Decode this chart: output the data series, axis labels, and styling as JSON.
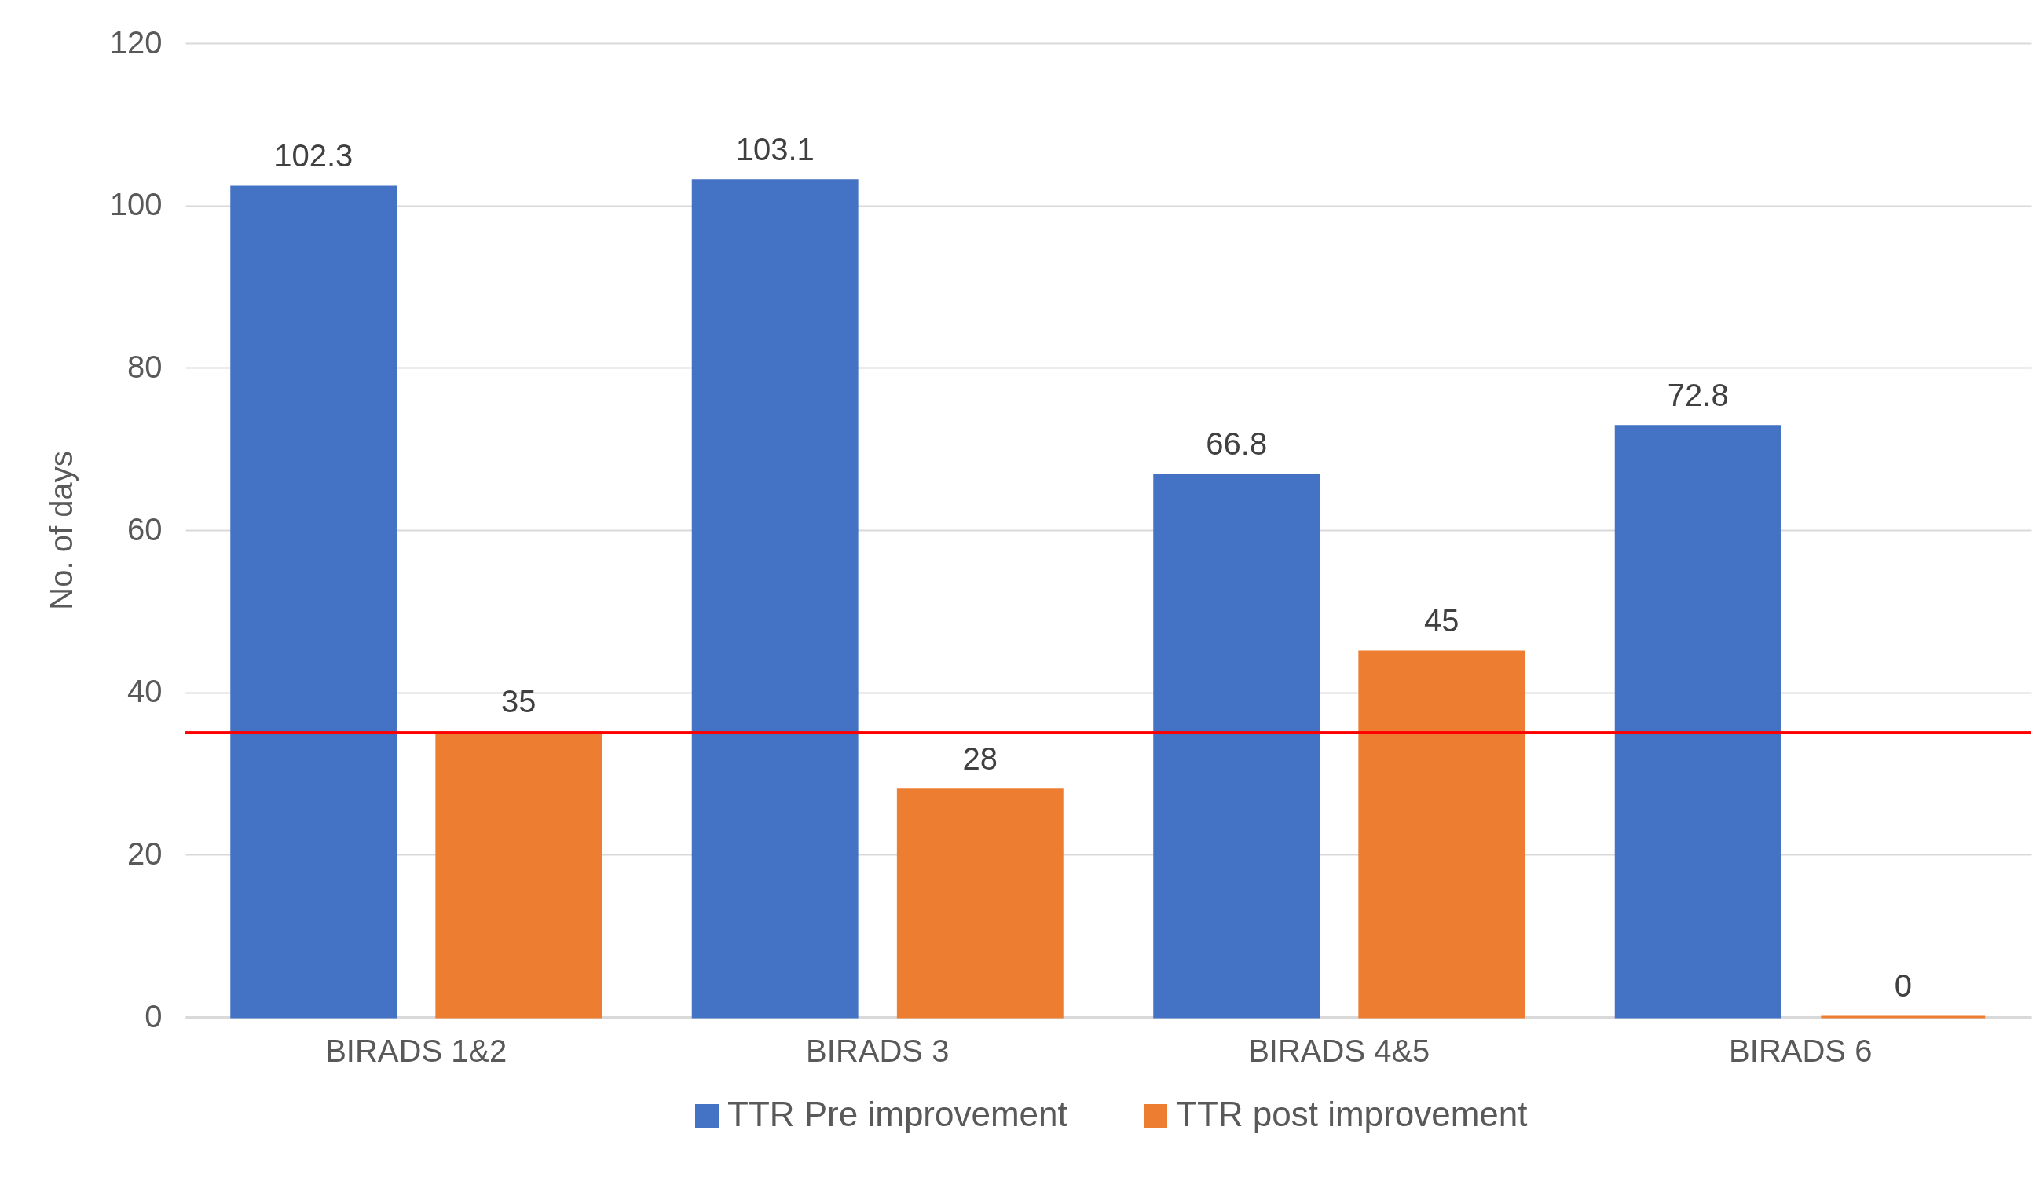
{
  "chart_data": {
    "type": "bar",
    "ylabel": "No. of days",
    "categories": [
      "BIRADS 1&2",
      "BIRADS 3",
      "BIRADS 4&5",
      "BIRADS 6"
    ],
    "series": [
      {
        "name": "TTR Pre improvement",
        "color": "#4472c4",
        "values": [
          102.3,
          103.1,
          66.8,
          72.8
        ]
      },
      {
        "name": "TTR post improvement",
        "color": "#ed7d31",
        "values": [
          35,
          28,
          45,
          0
        ]
      }
    ],
    "ylim": [
      0,
      120
    ],
    "yticks": [
      0,
      20,
      40,
      60,
      80,
      100,
      120
    ],
    "grid": "y",
    "legend": "bottom",
    "data_labels": true,
    "ref_lines": [
      {
        "axis": "y",
        "value": 35,
        "color": "#ff0000"
      }
    ]
  }
}
